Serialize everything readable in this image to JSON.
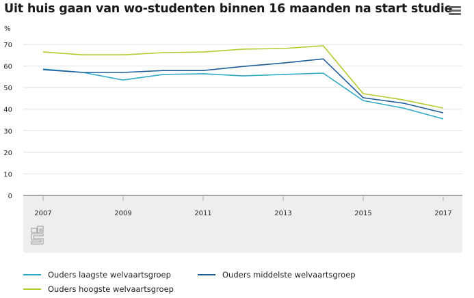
{
  "header": {
    "title": "Uit huis gaan van wo-studenten binnen 16 maanden na start studie",
    "menu_icon": "hamburger-menu-icon"
  },
  "logo": {
    "name": "cbs-logo-icon",
    "text": "cbs"
  },
  "colors": {
    "laagste": "#2fa8c8",
    "middelste": "#1f5d99",
    "hoogste": "#b6c92f",
    "plot_bg_bottom": "#eeeeee",
    "grid": "#e4e4e4"
  },
  "chart_data": {
    "type": "line",
    "title": "Uit huis gaan van wo-studenten binnen 16 maanden na start studie",
    "ylabel": "%",
    "xlabel": "",
    "ylim": [
      0,
      70
    ],
    "yticks": [
      0,
      10,
      20,
      30,
      40,
      50,
      60,
      70
    ],
    "xlim": [
      2007,
      2017
    ],
    "x": [
      2007,
      2008,
      2009,
      2010,
      2011,
      2012,
      2013,
      2014,
      2015,
      2016,
      2017
    ],
    "xticks": [
      "2007",
      "2009",
      "2011",
      "2013",
      "2015",
      "2017"
    ],
    "grid": true,
    "legend_position": "bottom",
    "series": [
      {
        "key": "laagste",
        "name": "Ouders laagste welvaartsgroep",
        "values": [
          58.6,
          57.0,
          53.5,
          56.1,
          56.4,
          55.4,
          56.1,
          56.7,
          44.0,
          40.5,
          35.5
        ]
      },
      {
        "key": "middelste",
        "name": "Ouders middelste welvaartsgroep",
        "values": [
          58.3,
          57.0,
          57.0,
          57.9,
          57.9,
          59.8,
          61.4,
          63.3,
          45.3,
          42.8,
          38.3
        ]
      },
      {
        "key": "hoogste",
        "name": "Ouders hoogste welvaartsgroep",
        "values": [
          66.5,
          65.2,
          65.2,
          66.2,
          66.5,
          67.8,
          68.1,
          69.4,
          47.2,
          44.3,
          40.5
        ]
      }
    ]
  }
}
